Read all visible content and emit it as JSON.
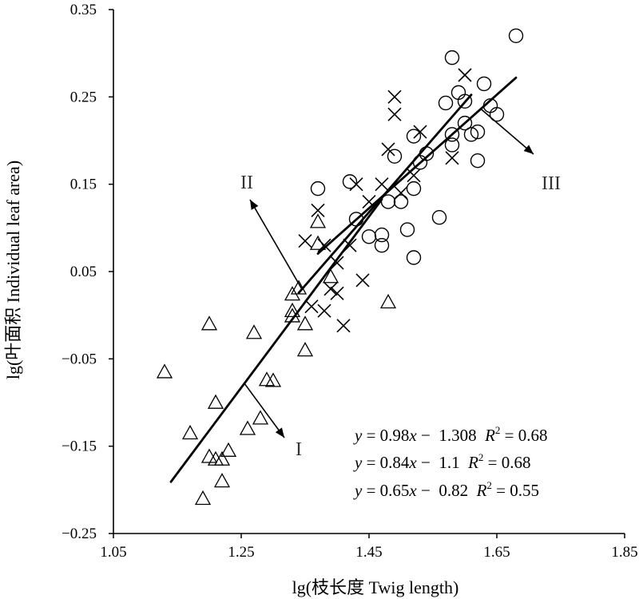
{
  "chart_data": {
    "type": "scatter",
    "xlabel": "lg(枝长度 Twig length)",
    "ylabel": "lg(叶面积 Individual leaf area)",
    "xlim": [
      1.05,
      1.85
    ],
    "ylim": [
      -0.25,
      0.35
    ],
    "xticks": [
      "1.05",
      "1.25",
      "1.45",
      "1.65",
      "1.85"
    ],
    "yticks": [
      "-0.25",
      "-0.15",
      "-0.05",
      "0.05",
      "0.15",
      "0.25",
      "0.35"
    ],
    "grid": false,
    "series": [
      {
        "marker": "triangle",
        "points": [
          [
            1.13,
            -0.065
          ],
          [
            1.17,
            -0.135
          ],
          [
            1.19,
            -0.21
          ],
          [
            1.2,
            -0.162
          ],
          [
            1.2,
            -0.01
          ],
          [
            1.21,
            -0.1
          ],
          [
            1.21,
            -0.165
          ],
          [
            1.22,
            -0.165
          ],
          [
            1.22,
            -0.19
          ],
          [
            1.23,
            -0.155
          ],
          [
            1.26,
            -0.13
          ],
          [
            1.27,
            -0.02
          ],
          [
            1.28,
            -0.118
          ],
          [
            1.29,
            -0.074
          ],
          [
            1.3,
            -0.075
          ],
          [
            1.33,
            -0.001
          ],
          [
            1.33,
            0.005
          ],
          [
            1.33,
            0.024
          ],
          [
            1.34,
            0.031
          ],
          [
            1.35,
            -0.01
          ],
          [
            1.35,
            -0.04
          ],
          [
            1.37,
            0.107
          ],
          [
            1.37,
            0.082
          ],
          [
            1.39,
            0.044
          ],
          [
            1.48,
            0.015
          ]
        ]
      },
      {
        "marker": "cross",
        "points": [
          [
            1.35,
            0.085
          ],
          [
            1.36,
            0.01
          ],
          [
            1.37,
            0.12
          ],
          [
            1.38,
            0.08
          ],
          [
            1.38,
            0.005
          ],
          [
            1.39,
            0.03
          ],
          [
            1.4,
            0.06
          ],
          [
            1.4,
            0.025
          ],
          [
            1.41,
            -0.012
          ],
          [
            1.42,
            0.08
          ],
          [
            1.43,
            0.15
          ],
          [
            1.44,
            0.04
          ],
          [
            1.45,
            0.13
          ],
          [
            1.47,
            0.15
          ],
          [
            1.48,
            0.19
          ],
          [
            1.49,
            0.23
          ],
          [
            1.49,
            0.25
          ],
          [
            1.5,
            0.14
          ],
          [
            1.52,
            0.16
          ],
          [
            1.53,
            0.21
          ],
          [
            1.58,
            0.18
          ],
          [
            1.6,
            0.275
          ]
        ]
      },
      {
        "marker": "circle",
        "points": [
          [
            1.37,
            0.145
          ],
          [
            1.42,
            0.153
          ],
          [
            1.43,
            0.11
          ],
          [
            1.45,
            0.09
          ],
          [
            1.47,
            0.08
          ],
          [
            1.47,
            0.092
          ],
          [
            1.48,
            0.13
          ],
          [
            1.49,
            0.182
          ],
          [
            1.5,
            0.13
          ],
          [
            1.51,
            0.098
          ],
          [
            1.52,
            0.066
          ],
          [
            1.52,
            0.205
          ],
          [
            1.52,
            0.145
          ],
          [
            1.53,
            0.175
          ],
          [
            1.54,
            0.185
          ],
          [
            1.56,
            0.112
          ],
          [
            1.57,
            0.243
          ],
          [
            1.58,
            0.195
          ],
          [
            1.58,
            0.295
          ],
          [
            1.58,
            0.207
          ],
          [
            1.59,
            0.255
          ],
          [
            1.6,
            0.245
          ],
          [
            1.6,
            0.22
          ],
          [
            1.61,
            0.207
          ],
          [
            1.62,
            0.21
          ],
          [
            1.62,
            0.177
          ],
          [
            1.63,
            0.265
          ],
          [
            1.64,
            0.24
          ],
          [
            1.65,
            0.23
          ],
          [
            1.68,
            0.32
          ]
        ]
      }
    ],
    "lines": [
      {
        "label": "I",
        "equation": "y = 0.98x − 1.308",
        "r2": "0.68",
        "slope": 0.98,
        "intercept": -1.308,
        "x_range": [
          1.14,
          1.47
        ]
      },
      {
        "label": "II",
        "equation": "y = 0.84x − 1.1",
        "r2": "0.68",
        "slope": 0.84,
        "intercept": -1.1,
        "x_range": [
          1.34,
          1.61
        ]
      },
      {
        "label": "III",
        "equation": "y = 0.65x − 0.82",
        "r2": "0.55",
        "slope": 0.65,
        "intercept": -0.82,
        "x_range": [
          1.37,
          1.68
        ]
      }
    ],
    "region_labels": [
      "I",
      "II",
      "III"
    ],
    "equations": [
      {
        "lhs": "y",
        "eq": " = 0.98",
        "var": "x",
        "rest": " −  1.308  ",
        "r": "R",
        "sup": "2",
        "val": " = 0.68"
      },
      {
        "lhs": "y",
        "eq": " = 0.84",
        "var": "x",
        "rest": " −  1.1  ",
        "r": "R",
        "sup": "2",
        "val": " = 0.68"
      },
      {
        "lhs": "y",
        "eq": " = 0.65",
        "var": "x",
        "rest": " −  0.82  ",
        "r": "R",
        "sup": "2",
        "val": " = 0.55"
      }
    ]
  }
}
